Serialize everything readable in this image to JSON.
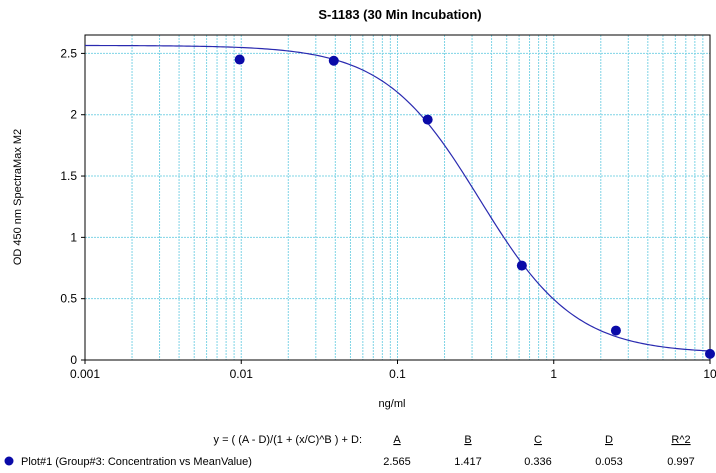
{
  "chart_data": {
    "type": "scatter",
    "title": "S-1183 (30 Min Incubation)",
    "xlabel": "ng/ml",
    "ylabel": "OD 450 nm SpectraMax M2",
    "x_scale": "log",
    "xlim": [
      0.001,
      10
    ],
    "ylim": [
      0,
      2.65
    ],
    "grid": true,
    "x_ticks": [
      "0.001",
      "0.01",
      "0.1",
      "1",
      "10"
    ],
    "y_ticks": [
      "0",
      "0.5",
      "1",
      "1.5",
      "2",
      "2.5"
    ],
    "series": [
      {
        "name": "Plot#1 (Group#3: Concentration vs MeanValue)",
        "x": [
          0.00977,
          0.0391,
          0.156,
          0.625,
          2.5,
          10
        ],
        "y": [
          2.45,
          2.44,
          1.96,
          0.77,
          0.24,
          0.05
        ]
      }
    ],
    "fit": {
      "equation": "y = ( (A - D)/(1 + (x/C)^B ) + D:",
      "params": [
        {
          "label": "A",
          "value": "2.565"
        },
        {
          "label": "B",
          "value": "1.417"
        },
        {
          "label": "C",
          "value": "0.336"
        },
        {
          "label": "D",
          "value": "0.053"
        },
        {
          "label": "R^2",
          "value": "0.997"
        }
      ]
    },
    "colors": {
      "points": "#0a0aa8",
      "curve": "#2a2ab0",
      "grid": "#7fd4e6"
    }
  }
}
